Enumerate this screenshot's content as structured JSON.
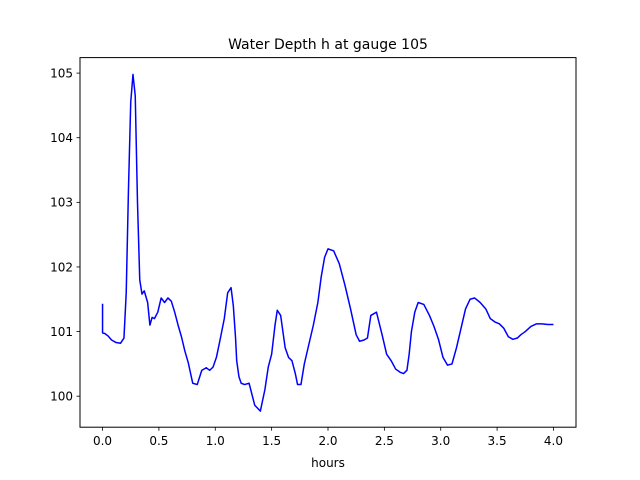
{
  "chart_data": {
    "type": "line",
    "title": "Water Depth h at gauge 105",
    "xlabel": "hours",
    "ylabel": "",
    "xlim": [
      -0.2,
      4.2
    ],
    "ylim": [
      99.52,
      105.24
    ],
    "xticks": [
      0.0,
      0.5,
      1.0,
      1.5,
      2.0,
      2.5,
      3.0,
      3.5,
      4.0
    ],
    "xtick_labels": [
      "0.0",
      "0.5",
      "1.0",
      "1.5",
      "2.0",
      "2.5",
      "3.0",
      "3.5",
      "4.0"
    ],
    "yticks": [
      100,
      101,
      102,
      103,
      104,
      105
    ],
    "ytick_labels": [
      "100",
      "101",
      "102",
      "103",
      "104",
      "105"
    ],
    "grid": false,
    "series": [
      {
        "color": "#0000ff",
        "x": [
          0.0,
          0.0,
          0.02,
          0.05,
          0.08,
          0.12,
          0.16,
          0.19,
          0.21,
          0.23,
          0.25,
          0.27,
          0.29,
          0.31,
          0.33,
          0.35,
          0.37,
          0.4,
          0.42,
          0.44,
          0.46,
          0.49,
          0.52,
          0.55,
          0.58,
          0.61,
          0.64,
          0.67,
          0.7,
          0.73,
          0.76,
          0.8,
          0.84,
          0.88,
          0.92,
          0.95,
          0.98,
          1.01,
          1.04,
          1.08,
          1.11,
          1.14,
          1.16,
          1.18,
          1.19,
          1.21,
          1.23,
          1.26,
          1.3,
          1.35,
          1.4,
          1.44,
          1.47,
          1.5,
          1.53,
          1.55,
          1.58,
          1.62,
          1.65,
          1.68,
          1.71,
          1.73,
          1.76,
          1.79,
          1.83,
          1.87,
          1.91,
          1.94,
          1.97,
          2.0,
          2.05,
          2.1,
          2.15,
          2.2,
          2.25,
          2.28,
          2.32,
          2.35,
          2.38,
          2.43,
          2.48,
          2.52,
          2.56,
          2.6,
          2.64,
          2.67,
          2.7,
          2.72,
          2.74,
          2.77,
          2.8,
          2.85,
          2.9,
          2.94,
          2.98,
          3.02,
          3.06,
          3.1,
          3.14,
          3.18,
          3.22,
          3.26,
          3.3,
          3.35,
          3.4,
          3.44,
          3.48,
          3.52,
          3.56,
          3.6,
          3.64,
          3.68,
          3.71,
          3.75,
          3.8,
          3.85,
          3.9,
          3.95,
          4.0
        ],
        "y": [
          101.43,
          100.98,
          100.97,
          100.93,
          100.87,
          100.83,
          100.82,
          100.9,
          101.6,
          103.2,
          104.55,
          104.98,
          104.65,
          103.0,
          101.8,
          101.58,
          101.63,
          101.45,
          101.1,
          101.22,
          101.2,
          101.3,
          101.52,
          101.45,
          101.52,
          101.47,
          101.3,
          101.1,
          100.92,
          100.7,
          100.52,
          100.2,
          100.18,
          100.4,
          100.44,
          100.4,
          100.45,
          100.6,
          100.85,
          101.2,
          101.6,
          101.68,
          101.4,
          100.9,
          100.55,
          100.3,
          100.2,
          100.18,
          100.2,
          99.86,
          99.77,
          100.1,
          100.45,
          100.65,
          101.1,
          101.33,
          101.25,
          100.75,
          100.6,
          100.55,
          100.35,
          100.18,
          100.18,
          100.5,
          100.8,
          101.1,
          101.45,
          101.85,
          102.15,
          102.28,
          102.25,
          102.05,
          101.72,
          101.35,
          100.95,
          100.85,
          100.87,
          100.9,
          101.25,
          101.3,
          100.95,
          100.65,
          100.55,
          100.42,
          100.37,
          100.35,
          100.4,
          100.65,
          101.0,
          101.3,
          101.45,
          101.42,
          101.25,
          101.08,
          100.88,
          100.6,
          100.48,
          100.5,
          100.75,
          101.05,
          101.35,
          101.5,
          101.52,
          101.45,
          101.35,
          101.2,
          101.15,
          101.12,
          101.05,
          100.92,
          100.88,
          100.9,
          100.95,
          101.0,
          101.08,
          101.12,
          101.12,
          101.11,
          101.11
        ]
      }
    ]
  }
}
